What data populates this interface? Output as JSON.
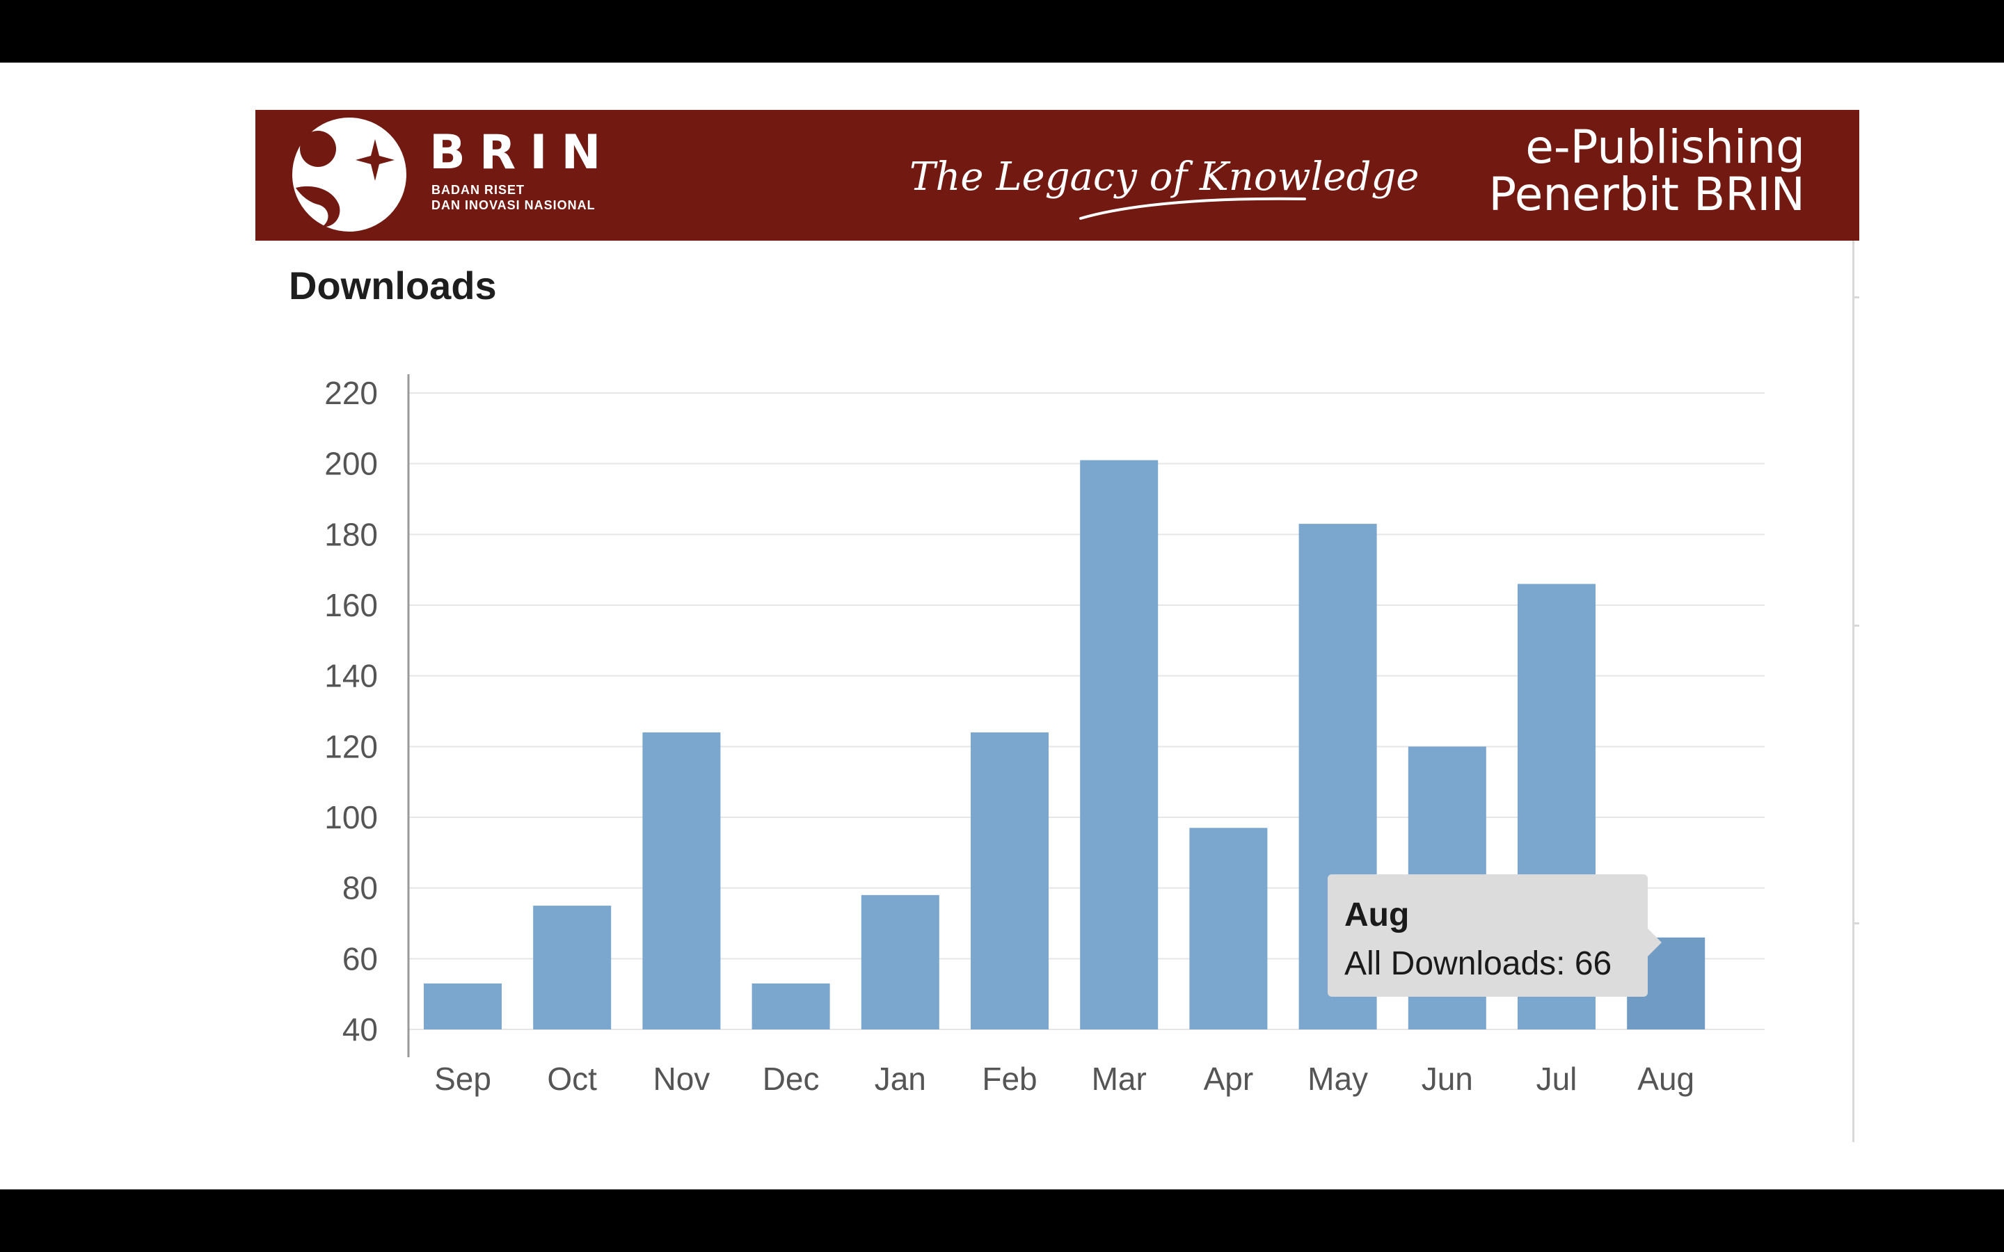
{
  "banner": {
    "logo_name": "BRIN",
    "logo_sub_line1": "BADAN RISET",
    "logo_sub_line2": "DAN INOVASI NASIONAL",
    "tagline": "The Legacy of Knowledge",
    "brand_line1": "e-Publishing",
    "brand_line2": "Penerbit BRIN",
    "background_color": "#721912"
  },
  "section_title": "Downloads",
  "tooltip": {
    "title": "Aug",
    "label": "All Downloads",
    "value": "66"
  },
  "chart_data": {
    "type": "bar",
    "categories": [
      "Sep",
      "Oct",
      "Nov",
      "Dec",
      "Jan",
      "Feb",
      "Mar",
      "Apr",
      "May",
      "Jun",
      "Jul",
      "Aug"
    ],
    "series": [
      {
        "name": "All Downloads",
        "values": [
          53,
          75,
          124,
          53,
          78,
          124,
          201,
          97,
          183,
          120,
          166,
          66
        ]
      }
    ],
    "yticks": [
      40,
      60,
      80,
      100,
      120,
      140,
      160,
      180,
      200,
      220
    ],
    "ylim": [
      40,
      225
    ],
    "grid": true,
    "legend": "none",
    "bar_color": "#7ba7cf",
    "highlight_color": "#6f9bc4",
    "highlight_index": 11
  }
}
